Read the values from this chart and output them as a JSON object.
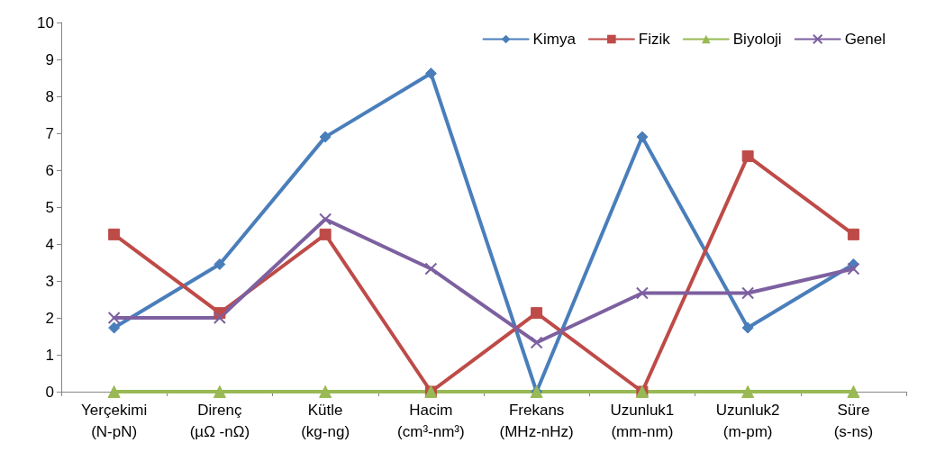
{
  "chart_data": {
    "type": "line",
    "categories": [
      "Yerçekimi\n(N-pN)",
      "Direnç\n(µΩ -nΩ)",
      "Kütle\n(kg-ng)",
      "Hacim\n(cm³-nm³)",
      "Frekans\n(MHz-nHz)",
      "Uzunluk1\n(mm-nm)",
      "Uzunluk2\n(m-pm)",
      "Süre\n(s-ns)"
    ],
    "series": [
      {
        "name": "Kimya",
        "color": "#4a7ebb",
        "marker": "diamond",
        "values": [
          1.73,
          3.45,
          6.9,
          8.62,
          0,
          6.9,
          1.73,
          3.45
        ]
      },
      {
        "name": "Fizik",
        "color": "#be4b48",
        "marker": "square",
        "values": [
          4.26,
          2.13,
          4.26,
          0,
          2.13,
          0,
          6.38,
          4.26
        ]
      },
      {
        "name": "Biyoloji",
        "color": "#98b954",
        "marker": "triangle",
        "values": [
          0,
          0,
          0,
          0,
          0,
          0,
          0,
          0
        ]
      },
      {
        "name": "Genel",
        "color": "#7d60a0",
        "marker": "cross",
        "values": [
          2,
          2,
          4.67,
          3.33,
          1.33,
          2.67,
          2.67,
          3.33
        ]
      }
    ],
    "ylim": [
      0,
      10
    ],
    "yticks": [
      0,
      1,
      2,
      3,
      4,
      5,
      6,
      7,
      8,
      9,
      10
    ],
    "grid": false,
    "legend": "top right",
    "line_style": "solid"
  }
}
